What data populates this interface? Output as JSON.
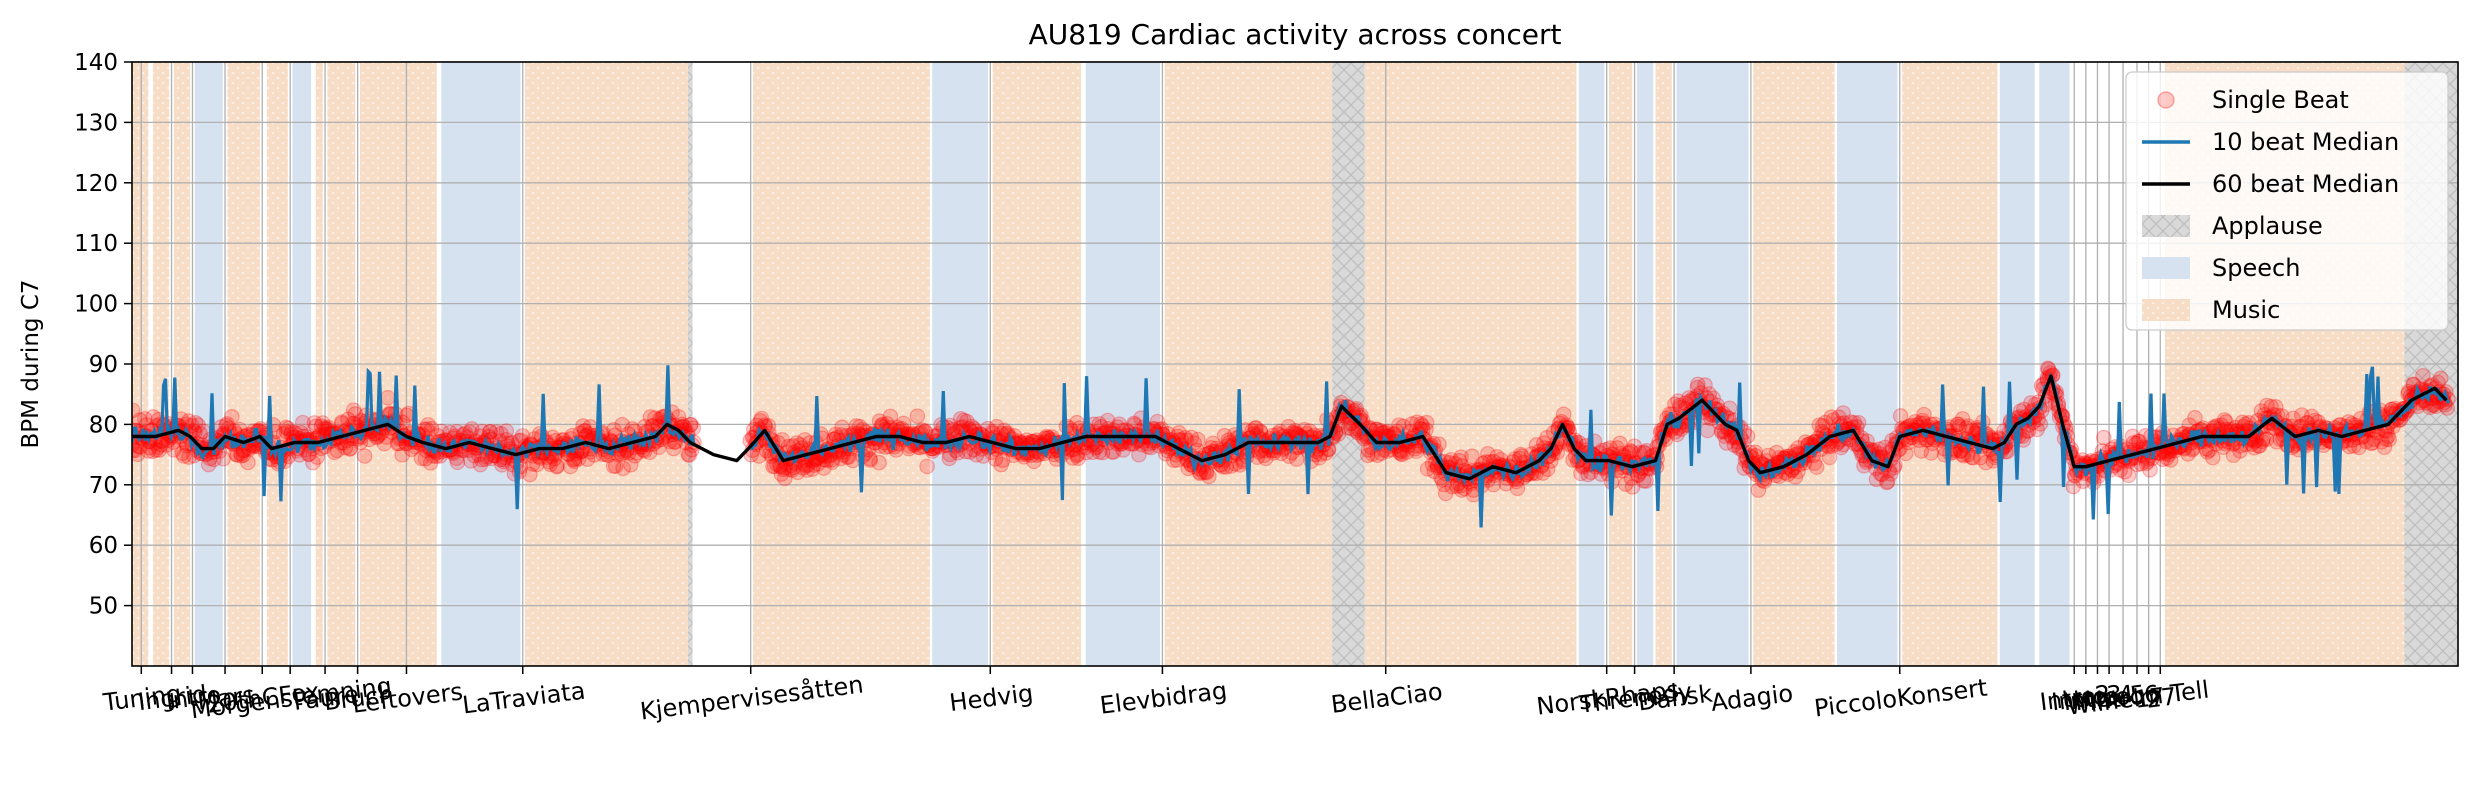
{
  "chart_data": {
    "type": "scatter",
    "title": "AU819 Cardiac activity across concert",
    "ylabel": "BPM during C7",
    "xlabel": "",
    "ylim": [
      40,
      140
    ],
    "yticks": [
      50,
      60,
      70,
      80,
      90,
      100,
      110,
      120,
      130,
      140
    ],
    "xlim": [
      0,
      100
    ],
    "grid": true,
    "legend_position": "top-right",
    "legend": [
      {
        "label": "Single Beat",
        "kind": "marker",
        "color": "#ff0000"
      },
      {
        "label": "10 beat Median",
        "kind": "line",
        "color": "#1f77b4"
      },
      {
        "label": "60 beat Median",
        "kind": "line",
        "color": "#000000"
      },
      {
        "label": "Applause",
        "kind": "patch",
        "color": "#c8c8c8"
      },
      {
        "label": "Speech",
        "kind": "patch",
        "color": "#b0c4de"
      },
      {
        "label": "Music",
        "kind": "patch",
        "color": "#f4c7a4"
      }
    ],
    "x_tick_labels": [
      {
        "x": 0.4,
        "label": "Tuning"
      },
      {
        "x": 1.7,
        "label": "Ingrid"
      },
      {
        "x": 2.6,
        "label": "Intro"
      },
      {
        "x": 4.0,
        "label": "Mars"
      },
      {
        "x": 5.6,
        "label": "20thCFox"
      },
      {
        "x": 6.8,
        "label": "Morgenstemning"
      },
      {
        "x": 8.3,
        "label": "Faure"
      },
      {
        "x": 9.7,
        "label": "Bruch"
      },
      {
        "x": 11.8,
        "label": "Leftovers"
      },
      {
        "x": 16.8,
        "label": "LaTraviata"
      },
      {
        "x": 26.6,
        "label": "Kjempervisesåtten"
      },
      {
        "x": 36.9,
        "label": "Hedvig"
      },
      {
        "x": 44.3,
        "label": "Elevbidrag"
      },
      {
        "x": 53.9,
        "label": "BellaCiao"
      },
      {
        "x": 63.4,
        "label": "NorskRhaps"
      },
      {
        "x": 64.6,
        "label": "Threnody"
      },
      {
        "x": 66.3,
        "label": "Dansk"
      },
      {
        "x": 69.6,
        "label": "Adagio"
      },
      {
        "x": 76.0,
        "label": "PiccoloKonsert"
      },
      {
        "x": 83.5,
        "label": "Intro2"
      },
      {
        "x": 84.0,
        "label": "Intro3"
      },
      {
        "x": 84.5,
        "label": "Intro4"
      },
      {
        "x": 85.0,
        "label": "Intro5"
      },
      {
        "x": 85.6,
        "label": "Intro6"
      },
      {
        "x": 86.2,
        "label": "Wilhelm Tell"
      },
      {
        "x": 86.7,
        "label": "17"
      },
      {
        "x": 87.2,
        "label": "27"
      }
    ],
    "regions": [
      {
        "type": "Music",
        "start": 0.0,
        "end": 0.7
      },
      {
        "type": "Music",
        "start": 0.9,
        "end": 1.6
      },
      {
        "type": "Music",
        "start": 1.8,
        "end": 2.5
      },
      {
        "type": "Speech",
        "start": 2.7,
        "end": 3.9
      },
      {
        "type": "Music",
        "start": 4.1,
        "end": 5.5
      },
      {
        "type": "Music",
        "start": 5.8,
        "end": 6.7
      },
      {
        "type": "Speech",
        "start": 6.9,
        "end": 7.7
      },
      {
        "type": "Music",
        "start": 7.9,
        "end": 8.2
      },
      {
        "type": "Music",
        "start": 8.4,
        "end": 9.6
      },
      {
        "type": "Music",
        "start": 9.8,
        "end": 13.1
      },
      {
        "type": "Speech",
        "start": 13.3,
        "end": 16.7
      },
      {
        "type": "Music",
        "start": 16.9,
        "end": 23.9
      },
      {
        "type": "Applause",
        "start": 23.9,
        "end": 24.1
      },
      {
        "type": "Music",
        "start": 26.7,
        "end": 34.3
      },
      {
        "type": "Speech",
        "start": 34.4,
        "end": 36.8
      },
      {
        "type": "Music",
        "start": 37.0,
        "end": 40.8
      },
      {
        "type": "Speech",
        "start": 41.0,
        "end": 44.2
      },
      {
        "type": "Music",
        "start": 44.4,
        "end": 51.6
      },
      {
        "type": "Applause",
        "start": 51.6,
        "end": 53.0
      },
      {
        "type": "Music",
        "start": 53.0,
        "end": 62.1
      },
      {
        "type": "Speech",
        "start": 62.2,
        "end": 63.3
      },
      {
        "type": "Music",
        "start": 63.5,
        "end": 64.5
      },
      {
        "type": "Speech",
        "start": 64.7,
        "end": 65.4
      },
      {
        "type": "Music",
        "start": 65.5,
        "end": 66.2
      },
      {
        "type": "Speech",
        "start": 66.4,
        "end": 69.5
      },
      {
        "type": "Music",
        "start": 69.7,
        "end": 73.2
      },
      {
        "type": "Speech",
        "start": 73.3,
        "end": 75.9
      },
      {
        "type": "Music",
        "start": 76.1,
        "end": 80.2
      },
      {
        "type": "Speech",
        "start": 80.3,
        "end": 81.8
      },
      {
        "type": "Speech",
        "start": 82.0,
        "end": 83.3
      },
      {
        "type": "Music",
        "start": 87.4,
        "end": 97.7
      },
      {
        "type": "Applause",
        "start": 97.7,
        "end": 100.0
      }
    ],
    "series": [
      {
        "name": "60 beat Median",
        "x": [
          0.0,
          1.0,
          2.0,
          2.5,
          3.0,
          3.5,
          4.0,
          4.8,
          5.5,
          6.0,
          7.0,
          8.0,
          9.0,
          10.0,
          11.0,
          11.8,
          12.5,
          13.5,
          14.5,
          15.5,
          16.5,
          17.5,
          18.5,
          19.5,
          20.5,
          21.5,
          22.5,
          23.0,
          23.5,
          24.0,
          25.0,
          26.0,
          26.5,
          27.2,
          28.0,
          29.0,
          30.0,
          31.0,
          32.0,
          33.0,
          34.0,
          35.0,
          36.0,
          37.0,
          38.0,
          39.0,
          40.0,
          41.0,
          42.0,
          43.0,
          44.0,
          45.0,
          46.0,
          47.0,
          48.0,
          49.0,
          50.0,
          51.0,
          51.5,
          52.0,
          52.8,
          53.5,
          54.5,
          55.5,
          56.5,
          57.5,
          58.5,
          59.5,
          60.5,
          61.0,
          61.5,
          62.0,
          62.5,
          63.5,
          64.5,
          65.5,
          66.0,
          66.5,
          67.5,
          68.5,
          69.0,
          69.5,
          70.0,
          71.0,
          72.0,
          73.0,
          74.0,
          74.8,
          75.5,
          76.0,
          77.0,
          78.0,
          79.0,
          80.0,
          80.5,
          81.0,
          81.5,
          82.0,
          82.5,
          83.0,
          83.5,
          84.0,
          85.0,
          86.0,
          87.0,
          88.0,
          89.0,
          90.0,
          91.0,
          92.0,
          93.0,
          94.0,
          95.0,
          96.0,
          97.0,
          97.5,
          98.0,
          98.5,
          99.0,
          99.5
        ],
        "values": [
          78,
          78,
          79,
          78,
          76,
          76,
          78,
          77,
          78,
          76,
          77,
          77,
          78,
          79,
          80,
          78,
          77,
          76,
          77,
          76,
          75,
          76,
          76,
          77,
          76,
          77,
          78,
          80,
          79,
          77,
          75,
          74,
          76,
          79,
          74,
          75,
          76,
          77,
          78,
          78,
          77,
          77,
          78,
          77,
          76,
          76,
          77,
          78,
          78,
          78,
          78,
          76,
          74,
          75,
          77,
          77,
          77,
          77,
          78,
          83,
          80,
          77,
          77,
          78,
          72,
          71,
          73,
          72,
          74,
          76,
          80,
          76,
          74,
          74,
          73,
          74,
          80,
          81,
          84,
          80,
          79,
          74,
          72,
          73,
          75,
          78,
          79,
          74,
          73,
          78,
          79,
          78,
          77,
          76,
          77,
          80,
          81,
          83,
          88,
          80,
          73,
          73,
          74,
          75,
          76,
          77,
          78,
          78,
          78,
          81,
          78,
          79,
          78,
          79,
          80,
          82,
          84,
          85,
          86,
          84
        ]
      }
    ],
    "notes": []
  }
}
